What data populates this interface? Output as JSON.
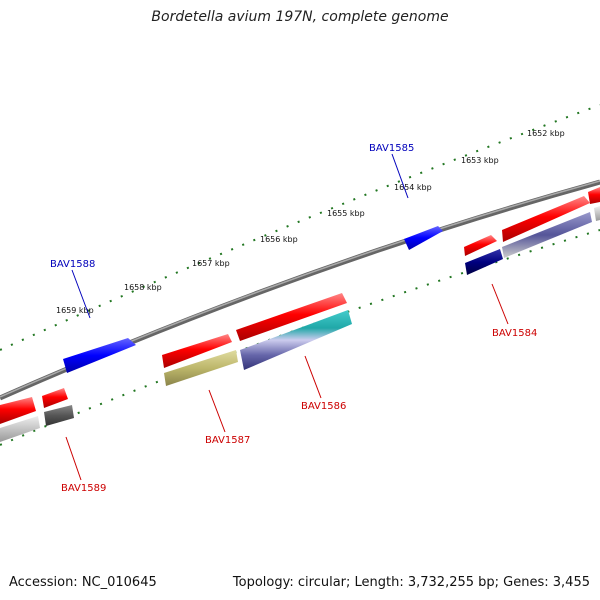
{
  "title": "Bordetella avium 197N, complete genome",
  "footer": {
    "accession": "Accession: NC_010645",
    "summary": "Topology: circular; Length: 3,732,255 bp; Genes: 3,455"
  },
  "ticks": {
    "k1652": "1652 kbp",
    "k1653": "1653 kbp",
    "k1654": "1654 kbp",
    "k1655": "1655 kbp",
    "k1656": "1656 kbp",
    "k1657": "1657 kbp",
    "k1658": "1658 kbp",
    "k1659": "1659 kbp"
  },
  "genes": {
    "bav1584": "BAV1584",
    "bav1585": "BAV1585",
    "bav1586": "BAV1586",
    "bav1587": "BAV1587",
    "bav1588": "BAV1588",
    "bav1589": "BAV1589"
  },
  "colors": {
    "forward_gene": "#ee0000",
    "reverse_gene": "#0000ee",
    "backbone": "#777777",
    "ticks": "#227722",
    "forward_label": "#cc0000",
    "reverse_label": "#0000bb"
  }
}
